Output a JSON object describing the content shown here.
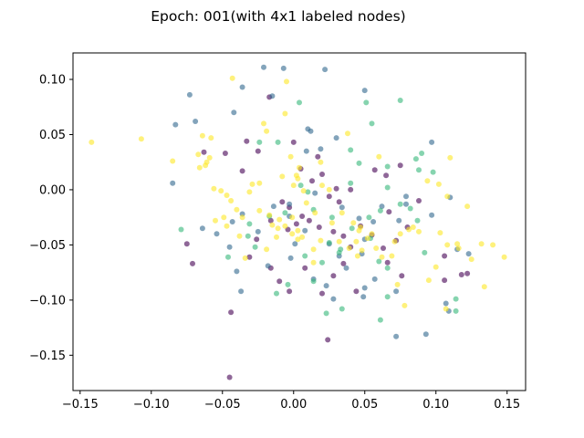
{
  "chart_data": {
    "type": "scatter",
    "title": "Epoch: 001(with 4x1 labeled nodes)",
    "xlabel": "",
    "ylabel": "",
    "xlim": [
      -0.155,
      0.163
    ],
    "ylim": [
      -0.182,
      0.124
    ],
    "xticks": [
      -0.15,
      -0.1,
      -0.05,
      0.0,
      0.05,
      0.1,
      0.15
    ],
    "xtick_labels": [
      "−0.15",
      "−0.10",
      "−0.05",
      "0.00",
      "0.05",
      "0.10",
      "0.15"
    ],
    "yticks": [
      0.1,
      0.05,
      0.0,
      -0.05,
      -0.1,
      -0.15
    ],
    "ytick_labels": [
      "0.10",
      "0.05",
      "0.00",
      "−0.05",
      "−0.10",
      "−0.15"
    ],
    "grid": false,
    "legend": "none",
    "marker_alpha": 0.6,
    "series": [
      {
        "color": "#440154",
        "points": [
          [
            -0.045,
            -0.17
          ],
          [
            -0.044,
            -0.111
          ],
          [
            0.024,
            -0.136
          ],
          [
            -0.075,
            -0.049
          ],
          [
            -0.071,
            -0.067
          ],
          [
            -0.031,
            -0.061
          ],
          [
            -0.026,
            -0.045
          ],
          [
            -0.017,
            0.084
          ],
          [
            0.0,
            0.043
          ],
          [
            0.017,
            0.03
          ],
          [
            0.005,
            0.019
          ],
          [
            0.02,
            0.014
          ],
          [
            0.013,
            0.008
          ],
          [
            0.03,
            0.001
          ],
          [
            0.025,
            -0.006
          ],
          [
            -0.008,
            -0.011
          ],
          [
            -0.003,
            -0.016
          ],
          [
            0.006,
            -0.024
          ],
          [
            0.011,
            -0.028
          ],
          [
            0.018,
            -0.034
          ],
          [
            0.028,
            -0.038
          ],
          [
            0.035,
            -0.042
          ],
          [
            0.04,
            -0.052
          ],
          [
            0.047,
            -0.033
          ],
          [
            0.055,
            -0.041
          ],
          [
            0.063,
            -0.053
          ],
          [
            0.072,
            -0.046
          ],
          [
            0.067,
            -0.02
          ],
          [
            0.08,
            -0.034
          ],
          [
            0.088,
            -0.01
          ],
          [
            0.057,
            0.018
          ],
          [
            0.075,
            0.022
          ],
          [
            0.065,
            0.013
          ],
          [
            0.04,
            0.0
          ],
          [
            -0.063,
            0.034
          ],
          [
            -0.048,
            0.033
          ],
          [
            -0.033,
            0.044
          ],
          [
            -0.036,
            0.017
          ],
          [
            -0.025,
            0.035
          ],
          [
            -0.01,
            -0.083
          ],
          [
            -0.003,
            -0.092
          ],
          [
            0.02,
            -0.094
          ],
          [
            0.028,
            -0.078
          ],
          [
            0.008,
            -0.071
          ],
          [
            -0.016,
            -0.071
          ],
          [
            0.035,
            -0.067
          ],
          [
            0.044,
            -0.092
          ],
          [
            0.066,
            -0.066
          ],
          [
            0.076,
            -0.078
          ],
          [
            0.106,
            -0.06
          ],
          [
            0.106,
            -0.082
          ],
          [
            0.118,
            -0.077
          ],
          [
            0.122,
            -0.076
          ],
          [
            -0.004,
            -0.036
          ],
          [
            -0.016,
            -0.028
          ],
          [
            0.002,
            -0.031
          ],
          [
            0.032,
            -0.011
          ]
        ]
      },
      {
        "color": "#31688e",
        "points": [
          [
            -0.021,
            0.111
          ],
          [
            -0.007,
            0.11
          ],
          [
            0.022,
            0.109
          ],
          [
            -0.036,
            0.093
          ],
          [
            0.05,
            0.09
          ],
          [
            -0.073,
            0.086
          ],
          [
            -0.083,
            0.059
          ],
          [
            -0.069,
            0.062
          ],
          [
            -0.042,
            0.07
          ],
          [
            -0.015,
            0.085
          ],
          [
            0.01,
            0.055
          ],
          [
            0.03,
            0.047
          ],
          [
            0.097,
            0.043
          ],
          [
            -0.085,
            0.006
          ],
          [
            -0.064,
            -0.035
          ],
          [
            -0.054,
            -0.04
          ],
          [
            -0.043,
            -0.029
          ],
          [
            -0.036,
            -0.022
          ],
          [
            -0.045,
            -0.052
          ],
          [
            -0.04,
            -0.074
          ],
          [
            -0.037,
            -0.092
          ],
          [
            -0.025,
            -0.038
          ],
          [
            -0.014,
            -0.015
          ],
          [
            -0.003,
            -0.013
          ],
          [
            0.015,
            -0.003
          ],
          [
            0.034,
            -0.016
          ],
          [
            0.046,
            -0.026
          ],
          [
            0.056,
            -0.029
          ],
          [
            0.062,
            -0.015
          ],
          [
            0.074,
            -0.028
          ],
          [
            0.079,
            -0.006
          ],
          [
            0.079,
            -0.013
          ],
          [
            0.097,
            -0.023
          ],
          [
            0.11,
            -0.007
          ],
          [
            0.107,
            -0.103
          ],
          [
            0.109,
            -0.11
          ],
          [
            0.115,
            -0.054
          ],
          [
            0.123,
            -0.058
          ],
          [
            0.072,
            -0.092
          ],
          [
            0.057,
            -0.081
          ],
          [
            0.05,
            -0.089
          ],
          [
            0.048,
            -0.058
          ],
          [
            0.05,
            -0.045
          ],
          [
            0.037,
            -0.071
          ],
          [
            0.032,
            -0.06
          ],
          [
            0.025,
            -0.049
          ],
          [
            0.008,
            -0.037
          ],
          [
            -0.002,
            -0.062
          ],
          [
            0.001,
            -0.049
          ],
          [
            0.014,
            -0.081
          ],
          [
            0.023,
            -0.087
          ],
          [
            0.028,
            -0.099
          ],
          [
            -0.018,
            -0.069
          ],
          [
            0.093,
            -0.131
          ],
          [
            0.072,
            -0.133
          ],
          [
            0.049,
            -0.097
          ],
          [
            0.009,
            0.035
          ],
          [
            0.012,
            0.053
          ],
          [
            0.019,
            0.037
          ],
          [
            -0.003,
            -0.024
          ]
        ]
      },
      {
        "color": "#35b779",
        "points": [
          [
            0.004,
            0.079
          ],
          [
            0.051,
            0.079
          ],
          [
            0.075,
            0.081
          ],
          [
            0.055,
            0.06
          ],
          [
            -0.011,
            0.043
          ],
          [
            -0.024,
            0.043
          ],
          [
            0.04,
            0.036
          ],
          [
            0.046,
            0.024
          ],
          [
            0.09,
            0.033
          ],
          [
            0.086,
            0.028
          ],
          [
            0.088,
            0.018
          ],
          [
            0.098,
            0.016
          ],
          [
            0.066,
            0.002
          ],
          [
            0.075,
            -0.013
          ],
          [
            0.082,
            -0.017
          ],
          [
            0.061,
            -0.019
          ],
          [
            0.053,
            -0.025
          ],
          [
            0.041,
            -0.035
          ],
          [
            0.027,
            -0.025
          ],
          [
            0.014,
            -0.018
          ],
          [
            0.01,
            -0.002
          ],
          [
            0.005,
            0.004
          ],
          [
            -0.006,
            -0.021
          ],
          [
            -0.017,
            -0.024
          ],
          [
            -0.031,
            -0.031
          ],
          [
            -0.027,
            -0.052
          ],
          [
            -0.032,
            -0.042
          ],
          [
            -0.079,
            -0.036
          ],
          [
            -0.046,
            -0.061
          ],
          [
            0.025,
            -0.048
          ],
          [
            0.032,
            -0.057
          ],
          [
            0.033,
            -0.054
          ],
          [
            0.02,
            -0.066
          ],
          [
            0.008,
            -0.06
          ],
          [
            0.066,
            -0.071
          ],
          [
            0.066,
            -0.097
          ],
          [
            0.061,
            -0.118
          ],
          [
            0.023,
            -0.112
          ],
          [
            0.014,
            -0.083
          ],
          [
            -0.012,
            -0.094
          ],
          [
            -0.004,
            -0.086
          ],
          [
            0.034,
            -0.108
          ],
          [
            0.114,
            -0.099
          ],
          [
            0.114,
            -0.11
          ],
          [
            0.087,
            -0.028
          ],
          [
            0.06,
            -0.065
          ],
          [
            0.092,
            -0.057
          ],
          [
            0.066,
            0.021
          ],
          [
            0.04,
            0.006
          ],
          [
            0.054,
            -0.044
          ]
        ]
      },
      {
        "color": "#fde725",
        "points": [
          [
            -0.142,
            0.043
          ],
          [
            -0.107,
            0.046
          ],
          [
            -0.043,
            0.101
          ],
          [
            -0.005,
            0.098
          ],
          [
            -0.006,
            0.069
          ],
          [
            -0.021,
            0.06
          ],
          [
            -0.019,
            0.053
          ],
          [
            -0.085,
            0.026
          ],
          [
            -0.066,
            0.02
          ],
          [
            -0.064,
            0.049
          ],
          [
            -0.058,
            0.047
          ],
          [
            -0.067,
            0.032
          ],
          [
            -0.059,
            0.029
          ],
          [
            -0.062,
            0.022
          ],
          [
            -0.056,
            0.001
          ],
          [
            -0.051,
            -0.001
          ],
          [
            -0.047,
            -0.005
          ],
          [
            -0.044,
            -0.01
          ],
          [
            -0.04,
            -0.018
          ],
          [
            -0.036,
            -0.025
          ],
          [
            -0.031,
            -0.002
          ],
          [
            -0.029,
            0.005
          ],
          [
            -0.024,
            0.006
          ],
          [
            -0.024,
            -0.019
          ],
          [
            -0.017,
            -0.023
          ],
          [
            -0.015,
            -0.032
          ],
          [
            -0.012,
            -0.043
          ],
          [
            -0.011,
            -0.035
          ],
          [
            -0.006,
            -0.033
          ],
          [
            -0.001,
            -0.04
          ],
          [
            0.003,
            -0.045
          ],
          [
            0.006,
            -0.043
          ],
          [
            0.015,
            -0.021
          ],
          [
            0.007,
            -0.001
          ],
          [
            0.003,
            0.01
          ],
          [
            0.0,
            0.004
          ],
          [
            -0.008,
            0.012
          ],
          [
            -0.002,
            0.03
          ],
          [
            0.019,
            0.025
          ],
          [
            0.02,
            0.004
          ],
          [
            0.025,
            0.0
          ],
          [
            0.027,
            -0.03
          ],
          [
            0.034,
            -0.021
          ],
          [
            0.042,
            -0.03
          ],
          [
            0.044,
            -0.047
          ],
          [
            0.046,
            -0.037
          ],
          [
            0.047,
            -0.034
          ],
          [
            0.048,
            -0.055
          ],
          [
            0.052,
            -0.044
          ],
          [
            0.055,
            -0.04
          ],
          [
            0.058,
            -0.053
          ],
          [
            0.062,
            -0.061
          ],
          [
            0.069,
            -0.06
          ],
          [
            0.071,
            -0.047
          ],
          [
            0.075,
            -0.04
          ],
          [
            0.081,
            -0.036
          ],
          [
            0.084,
            -0.034
          ],
          [
            0.088,
            -0.038
          ],
          [
            0.094,
            0.008
          ],
          [
            0.102,
            0.005
          ],
          [
            0.108,
            -0.006
          ],
          [
            0.11,
            0.029
          ],
          [
            0.103,
            -0.039
          ],
          [
            0.108,
            -0.05
          ],
          [
            0.115,
            -0.049
          ],
          [
            0.116,
            -0.053
          ],
          [
            0.122,
            -0.015
          ],
          [
            0.132,
            -0.049
          ],
          [
            0.14,
            -0.05
          ],
          [
            0.148,
            -0.061
          ],
          [
            0.125,
            -0.063
          ],
          [
            0.134,
            -0.088
          ],
          [
            0.1,
            -0.07
          ],
          [
            0.095,
            -0.082
          ],
          [
            0.073,
            -0.086
          ],
          [
            0.107,
            -0.108
          ],
          [
            0.078,
            -0.105
          ],
          [
            0.045,
            -0.06
          ],
          [
            0.039,
            -0.053
          ],
          [
            0.032,
            -0.047
          ],
          [
            0.019,
            -0.046
          ],
          [
            0.014,
            -0.054
          ],
          [
            0.014,
            -0.066
          ],
          [
            0.003,
            -0.037
          ],
          [
            -0.001,
            -0.025
          ],
          [
            -0.01,
            -0.027
          ],
          [
            -0.019,
            -0.054
          ],
          [
            -0.034,
            -0.062
          ],
          [
            -0.038,
            -0.042
          ],
          [
            -0.047,
            -0.033
          ],
          [
            -0.049,
            -0.025
          ],
          [
            -0.055,
            -0.028
          ],
          [
            -0.061,
            0.025
          ],
          [
            0.06,
            0.03
          ],
          [
            0.038,
            0.051
          ],
          [
            0.002,
            0.013
          ],
          [
            0.009,
            -0.012
          ],
          [
            0.004,
            0.02
          ]
        ]
      }
    ]
  }
}
